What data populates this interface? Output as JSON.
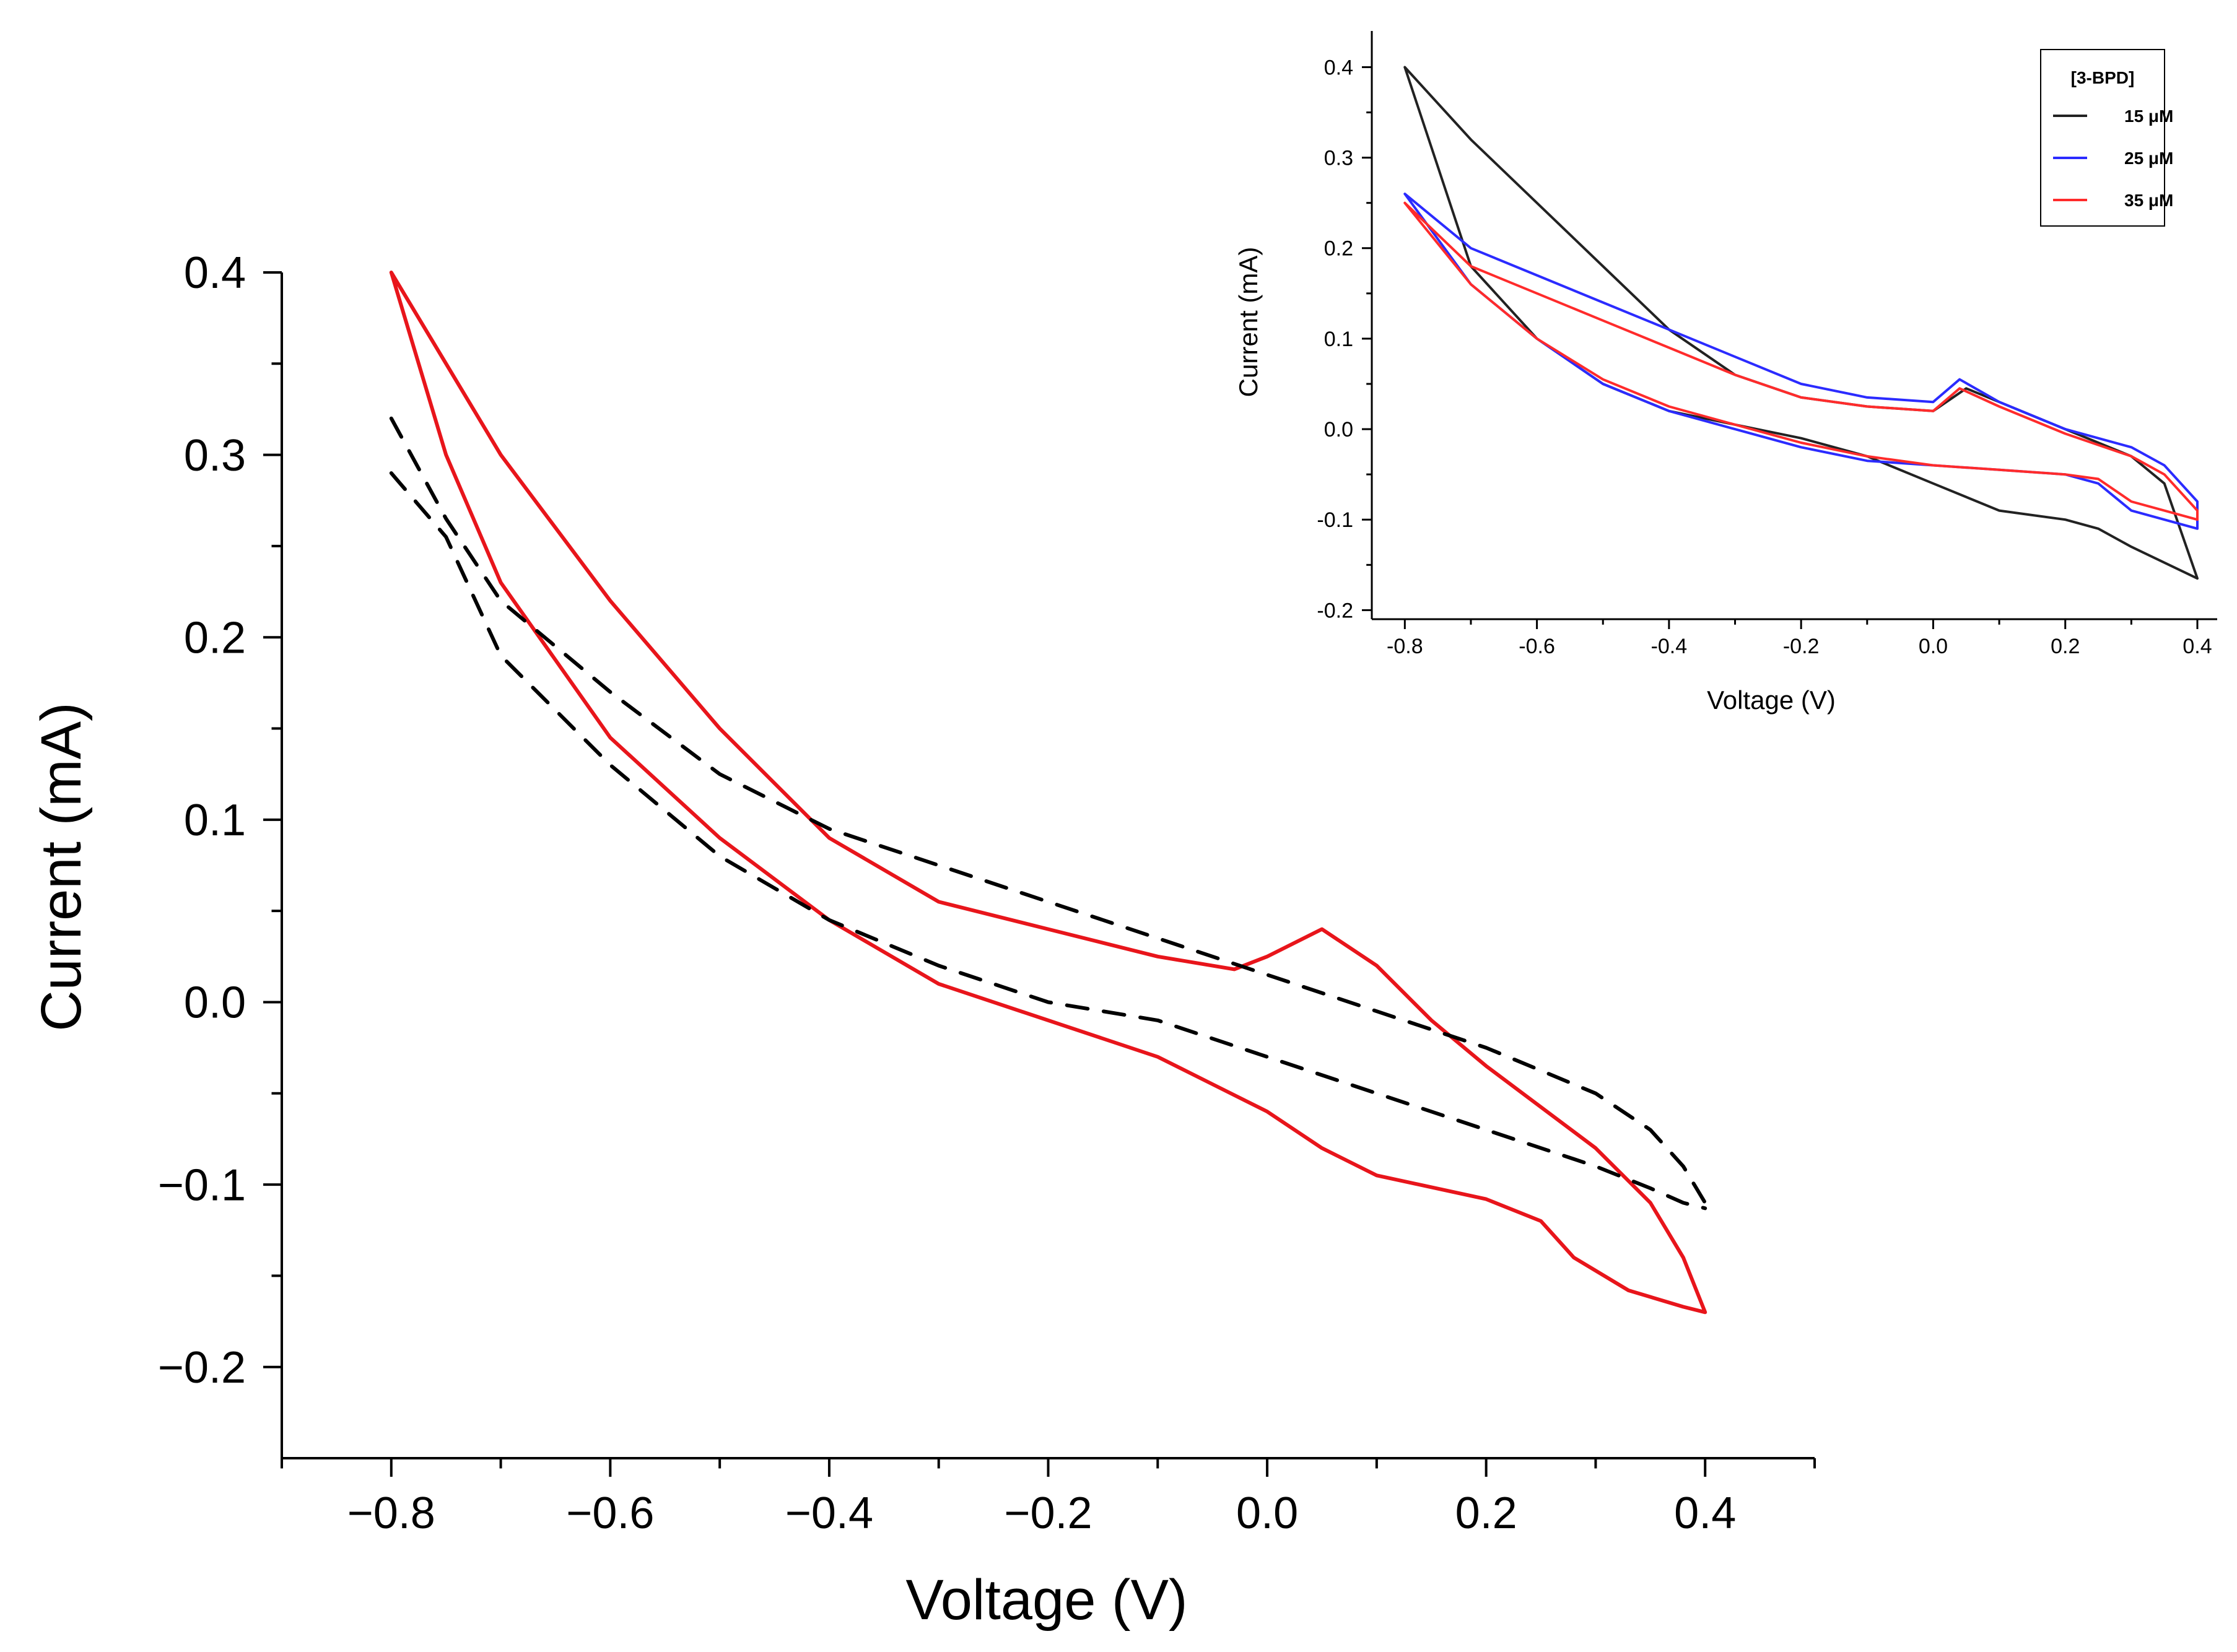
{
  "chart_data": [
    {
      "type": "line",
      "title": "",
      "xlabel": "Voltage (V)",
      "ylabel": "Current (mA)",
      "xlim": [
        -0.9,
        0.5
      ],
      "ylim": [
        -0.25,
        0.4
      ],
      "xticks": [
        "−0.8",
        "−0.6",
        "−0.4",
        "−0.2",
        "0.0",
        "0.2",
        "0.4"
      ],
      "xtick_values": [
        -0.8,
        -0.6,
        -0.4,
        -0.2,
        0.0,
        0.2,
        0.4
      ],
      "yticks": [
        "0.4",
        "0.3",
        "0.2",
        "0.1",
        "0.0",
        "−0.1",
        "−0.2"
      ],
      "ytick_values": [
        0.4,
        0.3,
        0.2,
        0.1,
        0.0,
        -0.1,
        -0.2
      ],
      "grid": false,
      "legend": "none",
      "series": [
        {
          "color": "#e8151b",
          "style": "solid",
          "x": [
            -0.8,
            -0.75,
            -0.7,
            -0.6,
            -0.5,
            -0.4,
            -0.3,
            -0.2,
            -0.1,
            -0.03,
            0.0,
            0.05,
            0.1,
            0.15,
            0.2,
            0.3,
            0.35,
            0.38,
            0.4,
            0.38,
            0.33,
            0.28,
            0.25,
            0.2,
            0.1,
            0.05,
            0.0,
            -0.05,
            -0.1,
            -0.2,
            -0.3,
            -0.4,
            -0.5,
            -0.6,
            -0.7,
            -0.75,
            -0.8
          ],
          "y": [
            0.4,
            0.35,
            0.3,
            0.22,
            0.15,
            0.09,
            0.055,
            0.04,
            0.025,
            0.018,
            0.025,
            0.04,
            0.02,
            -0.01,
            -0.035,
            -0.08,
            -0.11,
            -0.14,
            -0.17,
            -0.167,
            -0.158,
            -0.14,
            -0.12,
            -0.108,
            -0.095,
            -0.08,
            -0.06,
            -0.045,
            -0.03,
            -0.01,
            0.01,
            0.045,
            0.09,
            0.145,
            0.23,
            0.3,
            0.4
          ]
        },
        {
          "color": "#000000",
          "style": "dashed",
          "x": [
            -0.8,
            -0.75,
            -0.7,
            -0.6,
            -0.5,
            -0.4,
            -0.3,
            -0.2,
            -0.1,
            0.0,
            0.1,
            0.2,
            0.3,
            0.35,
            0.38,
            0.4
          ],
          "y": [
            0.32,
            0.265,
            0.22,
            0.17,
            0.125,
            0.095,
            0.075,
            0.055,
            0.035,
            0.015,
            -0.005,
            -0.025,
            -0.05,
            -0.07,
            -0.09,
            -0.11
          ]
        },
        {
          "color": "#000000",
          "style": "dashed",
          "x": [
            -0.8,
            -0.75,
            -0.7,
            -0.6,
            -0.5,
            -0.4,
            -0.3,
            -0.2,
            -0.1,
            0.0,
            0.1,
            0.2,
            0.3,
            0.35,
            0.38,
            0.4
          ],
          "y": [
            0.29,
            0.255,
            0.19,
            0.13,
            0.08,
            0.045,
            0.02,
            0.0,
            -0.01,
            -0.03,
            -0.05,
            -0.07,
            -0.09,
            -0.102,
            -0.11,
            -0.113
          ]
        }
      ]
    },
    {
      "type": "line",
      "title": "",
      "xlabel": "Voltage (V)",
      "ylabel": "Current (mA)",
      "xlim": [
        -0.85,
        0.43
      ],
      "ylim": [
        -0.21,
        0.44
      ],
      "xticks": [
        "-0.8",
        "-0.6",
        "-0.4",
        "-0.2",
        "0.0",
        "0.2",
        "0.4"
      ],
      "xtick_values": [
        -0.8,
        -0.6,
        -0.4,
        -0.2,
        0.0,
        0.2,
        0.4
      ],
      "yticks": [
        "0.4",
        "0.3",
        "0.2",
        "0.1",
        "0.0",
        "-0.1",
        "-0.2"
      ],
      "ytick_values": [
        0.4,
        0.3,
        0.2,
        0.1,
        0.0,
        -0.1,
        -0.2
      ],
      "grid": false,
      "legend": "top-right",
      "legend_title": "[3-BPD]",
      "series": [
        {
          "name": "15 μM",
          "color": "#222222",
          "x": [
            -0.8,
            -0.7,
            -0.6,
            -0.5,
            -0.4,
            -0.3,
            -0.2,
            -0.1,
            0.0,
            0.05,
            0.1,
            0.2,
            0.3,
            0.35,
            0.4,
            0.3,
            0.25,
            0.2,
            0.1,
            0.0,
            -0.1,
            -0.2,
            -0.3,
            -0.4,
            -0.5,
            -0.6,
            -0.7,
            -0.8
          ],
          "y": [
            0.4,
            0.32,
            0.25,
            0.18,
            0.11,
            0.06,
            0.035,
            0.025,
            0.02,
            0.045,
            0.03,
            0.0,
            -0.03,
            -0.06,
            -0.165,
            -0.13,
            -0.11,
            -0.1,
            -0.09,
            -0.06,
            -0.03,
            -0.01,
            0.005,
            0.02,
            0.05,
            0.1,
            0.18,
            0.4
          ]
        },
        {
          "name": "25 μM",
          "color": "#2b2bff",
          "x": [
            -0.8,
            -0.7,
            -0.6,
            -0.5,
            -0.4,
            -0.3,
            -0.2,
            -0.1,
            0.0,
            0.04,
            0.1,
            0.2,
            0.3,
            0.35,
            0.4,
            0.4,
            0.3,
            0.25,
            0.2,
            0.1,
            0.0,
            -0.1,
            -0.2,
            -0.3,
            -0.4,
            -0.5,
            -0.6,
            -0.7,
            -0.8
          ],
          "y": [
            0.26,
            0.2,
            0.17,
            0.14,
            0.11,
            0.08,
            0.05,
            0.035,
            0.03,
            0.055,
            0.03,
            0.0,
            -0.02,
            -0.04,
            -0.08,
            -0.11,
            -0.09,
            -0.06,
            -0.05,
            -0.045,
            -0.04,
            -0.035,
            -0.02,
            0.0,
            0.02,
            0.05,
            0.1,
            0.16,
            0.26
          ]
        },
        {
          "name": "35 μM",
          "color": "#ff2b2b",
          "x": [
            -0.8,
            -0.7,
            -0.6,
            -0.5,
            -0.4,
            -0.3,
            -0.2,
            -0.1,
            0.0,
            0.04,
            0.1,
            0.2,
            0.3,
            0.35,
            0.4,
            0.4,
            0.3,
            0.25,
            0.2,
            0.1,
            0.0,
            -0.1,
            -0.2,
            -0.3,
            -0.4,
            -0.5,
            -0.6,
            -0.7,
            -0.8
          ],
          "y": [
            0.25,
            0.18,
            0.15,
            0.12,
            0.09,
            0.06,
            0.035,
            0.025,
            0.02,
            0.045,
            0.025,
            -0.005,
            -0.03,
            -0.05,
            -0.09,
            -0.1,
            -0.08,
            -0.055,
            -0.05,
            -0.045,
            -0.04,
            -0.03,
            -0.015,
            0.005,
            0.025,
            0.055,
            0.1,
            0.16,
            0.25
          ]
        }
      ]
    }
  ]
}
